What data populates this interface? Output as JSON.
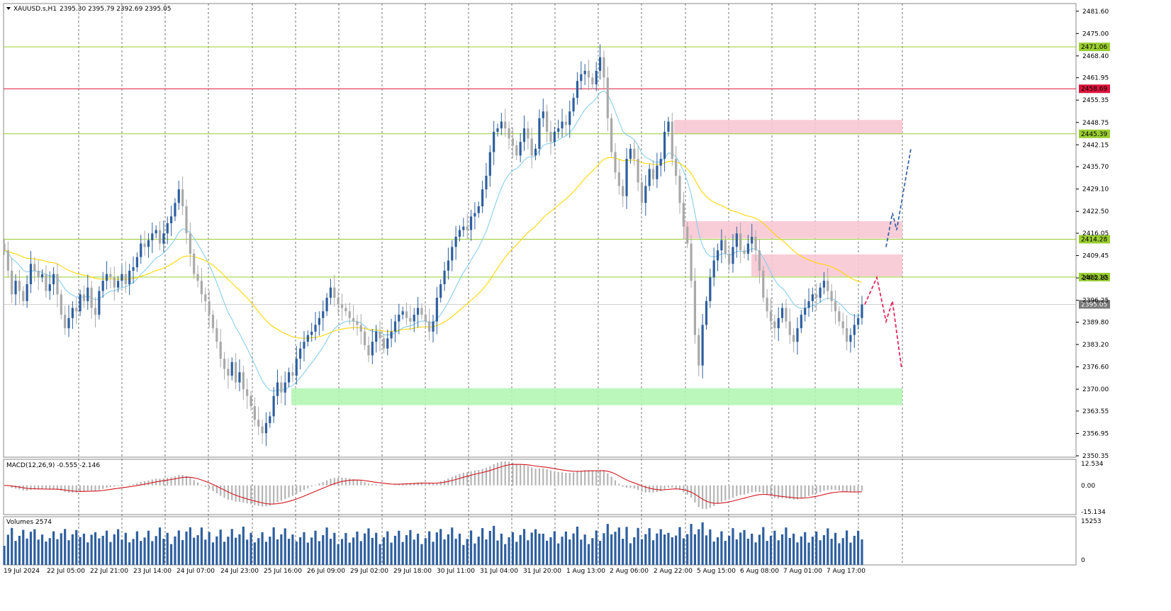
{
  "chart_data": {
    "type": "candlestick",
    "symbol_label": "XAUUSD.s,H1",
    "ohlc_label": "2395.30 2395.79 2392.69 2395.05",
    "price_axis": {
      "min": 2350.35,
      "max": 2481.55,
      "ticks": [
        "2481.60",
        "2475.00",
        "2468.40",
        "2461.95",
        "2455.35",
        "2448.75",
        "2442.15",
        "2435.70",
        "2429.10",
        "2422.50",
        "2416.05",
        "2409.45",
        "2402.85",
        "2396.25",
        "2389.80",
        "2383.20",
        "2376.60",
        "2370.00",
        "2363.55",
        "2356.95",
        "2350.35"
      ]
    },
    "time_axis": {
      "ticks": [
        "19 Jul 2024",
        "22 Jul 05:00",
        "22 Jul 21:00",
        "23 Jul 14:00",
        "24 Jul 07:00",
        "24 Jul 23:00",
        "25 Jul 16:00",
        "26 Jul 09:00",
        "29 Jul 02:00",
        "29 Jul 18:00",
        "30 Jul 11:00",
        "31 Jul 04:00",
        "31 Jul 20:00",
        "1 Aug 13:00",
        "2 Aug 06:00",
        "2 Aug 22:00",
        "5 Aug 15:00",
        "6 Aug 08:00",
        "7 Aug 01:00",
        "7 Aug 17:00"
      ]
    },
    "horizontal_levels": [
      {
        "label": "2471.06",
        "value": 2471.06,
        "color": "#9acd32"
      },
      {
        "label": "2458.69",
        "value": 2458.69,
        "color": "#dc143c"
      },
      {
        "label": "2445.39",
        "value": 2445.39,
        "color": "#9acd32"
      },
      {
        "label": "2414.28",
        "value": 2414.28,
        "color": "#9acd32"
      },
      {
        "label": "2403.10",
        "value": 2403.1,
        "color": "#9acd32"
      }
    ],
    "current_price": {
      "label": "2395.05",
      "value": 2395.05
    },
    "zones": [
      {
        "kind": "supply",
        "low": 2445.3,
        "high": 2449.5,
        "color": "#f8c8d4"
      },
      {
        "kind": "supply",
        "low": 2414.5,
        "high": 2419.6,
        "color": "#f8c8d4"
      },
      {
        "kind": "supply",
        "low": 2403.3,
        "high": 2409.8,
        "color": "#f8c8d4"
      },
      {
        "kind": "demand",
        "low": 2365.3,
        "high": 2370.3,
        "color": "#b4f5b4"
      }
    ],
    "close_series": [
      2411,
      2405,
      2398,
      2402,
      2399,
      2396,
      2401,
      2407,
      2405,
      2403,
      2404,
      2399,
      2401,
      2404,
      2398,
      2392,
      2388,
      2391,
      2394,
      2393,
      2398,
      2396,
      2400,
      2394,
      2392,
      2399,
      2402,
      2404,
      2403,
      2400,
      2402,
      2404,
      2401,
      2405,
      2406,
      2409,
      2413,
      2412,
      2414,
      2416,
      2417,
      2413,
      2416,
      2419,
      2421,
      2425,
      2429,
      2424,
      2416,
      2410,
      2404,
      2402,
      2398,
      2396,
      2392,
      2388,
      2384,
      2379,
      2376,
      2374,
      2378,
      2372,
      2375,
      2370,
      2368,
      2365,
      2361,
      2359,
      2357,
      2360,
      2362,
      2368,
      2372,
      2369,
      2372,
      2375,
      2374,
      2379,
      2382,
      2384,
      2386,
      2387,
      2389,
      2391,
      2393,
      2397,
      2400,
      2397,
      2395,
      2394,
      2393,
      2391,
      2390,
      2389,
      2387,
      2383,
      2380,
      2384,
      2387,
      2385,
      2382,
      2385,
      2387,
      2390,
      2392,
      2393,
      2391,
      2390,
      2392,
      2394,
      2392,
      2390,
      2387,
      2390,
      2397,
      2401,
      2405,
      2408,
      2412,
      2415,
      2417,
      2418,
      2417,
      2421,
      2422,
      2424,
      2429,
      2433,
      2440,
      2446,
      2447,
      2449,
      2447,
      2444,
      2442,
      2439,
      2443,
      2447,
      2444,
      2439,
      2441,
      2450,
      2452,
      2446,
      2443,
      2446,
      2447,
      2449,
      2448,
      2452,
      2456,
      2461,
      2463,
      2464,
      2462,
      2460,
      2464,
      2468,
      2462,
      2450,
      2440,
      2434,
      2430,
      2427,
      2438,
      2441,
      2438,
      2431,
      2425,
      2430,
      2435,
      2432,
      2436,
      2438,
      2446,
      2449,
      2438,
      2433,
      2425,
      2418,
      2413,
      2402,
      2386,
      2377,
      2389,
      2396,
      2403,
      2408,
      2411,
      2414,
      2410,
      2407,
      2412,
      2416,
      2411,
      2410,
      2413,
      2415,
      2411,
      2405,
      2397,
      2393,
      2390,
      2388,
      2391,
      2394,
      2390,
      2386,
      2384,
      2388,
      2392,
      2394,
      2396,
      2398,
      2397,
      2400,
      2402,
      2399,
      2396,
      2393,
      2390,
      2388,
      2384,
      2386,
      2389,
      2391,
      2395
    ],
    "volumes_label": "Volumes 2574",
    "volume_axis": {
      "ticks": [
        "15253",
        "0"
      ]
    },
    "macd_label": "MACD(12,26,9) -0.555 -2.146",
    "macd_axis": {
      "ticks": [
        "12.534",
        "0.00",
        "-15.134"
      ]
    },
    "projection_paths": [
      {
        "name": "bearish",
        "color": "#e8295c"
      },
      {
        "name": "bullish",
        "color": "#3a66a8"
      }
    ]
  }
}
